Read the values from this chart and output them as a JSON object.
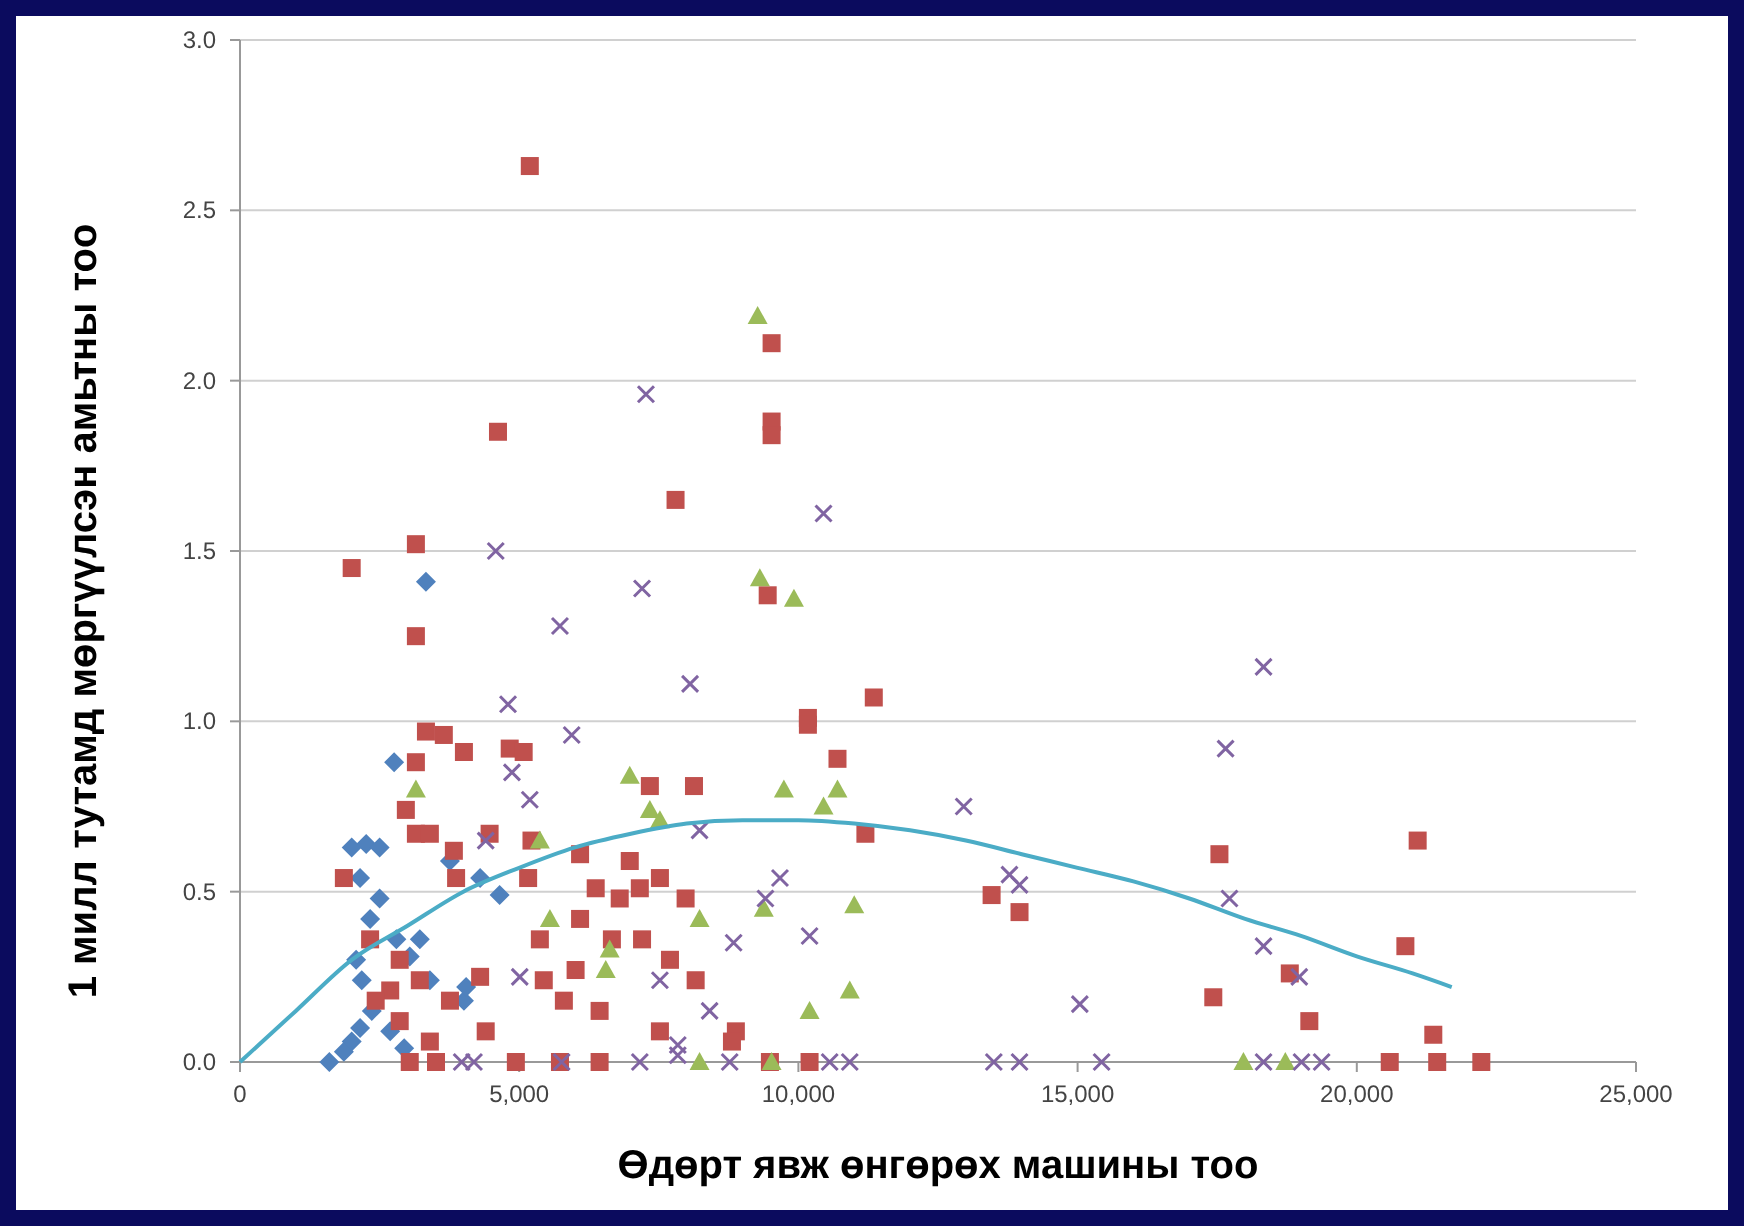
{
  "chart_data": {
    "type": "scatter",
    "xlabel": "Өдөрт явж өнгөрөх машины тоо",
    "ylabel": "1 милл тутамд мөргүүлсэн амьтны тоо",
    "xlim": [
      0,
      25000
    ],
    "ylim": [
      0,
      3
    ],
    "xticks": [
      {
        "value": 0,
        "label": "0"
      },
      {
        "value": 5000,
        "label": "5,000"
      },
      {
        "value": 10000,
        "label": "10,000"
      },
      {
        "value": 15000,
        "label": "15,000"
      },
      {
        "value": 20000,
        "label": "20,000"
      },
      {
        "value": 25000,
        "label": "25,000"
      }
    ],
    "yticks": [
      {
        "value": 0,
        "label": "0.0"
      },
      {
        "value": 0.5,
        "label": "0.5"
      },
      {
        "value": 1,
        "label": "1.0"
      },
      {
        "value": 1.5,
        "label": "1.5"
      },
      {
        "value": 2,
        "label": "2.0"
      },
      {
        "value": 2.5,
        "label": "2.5"
      },
      {
        "value": 3,
        "label": "3.0"
      }
    ],
    "grid": "y",
    "series": [
      {
        "marker": "diamond",
        "color": "#4f81bd",
        "x": [
          1600,
          1860,
          2000,
          2150,
          3330,
          2000,
          2260,
          2500,
          2150,
          2500,
          2330,
          2800,
          3040,
          3220,
          3400,
          4010,
          4050,
          2080,
          2180,
          2360,
          2690,
          2940,
          4300,
          4650,
          3760,
          2760
        ],
        "values": [
          0,
          0.03,
          0.06,
          0.1,
          1.41,
          0.63,
          0.64,
          0.63,
          0.54,
          0.48,
          0.42,
          0.36,
          0.31,
          0.36,
          0.24,
          0.18,
          0.22,
          0.3,
          0.24,
          0.15,
          0.09,
          0.04,
          0.54,
          0.49,
          0.59,
          0.88
        ]
      },
      {
        "marker": "square",
        "color": "#c0504d",
        "x": [
          2000,
          3150,
          3150,
          3330,
          3650,
          4010,
          4830,
          5080,
          3150,
          2970,
          3150,
          3400,
          3830,
          3870,
          4470,
          1860,
          5220,
          5190,
          4620,
          9520,
          9520,
          9520,
          7800,
          9450,
          11350,
          10170,
          10170,
          7340,
          8130,
          10700,
          11200,
          5160,
          6090,
          6370,
          6090,
          6660,
          6800,
          7200,
          7700,
          7980,
          8160,
          8880,
          8810,
          7520,
          6440,
          5730,
          4940,
          3510,
          3040,
          10200,
          9490,
          13460,
          13960,
          17540,
          17430,
          18800,
          19150,
          21090,
          20870,
          21370,
          20590,
          21440,
          22230,
          2860,
          2690,
          2430,
          3220,
          2860,
          2330,
          3400,
          3760,
          4300,
          4400,
          5370,
          5440,
          5800,
          6010,
          6440,
          6980,
          7160,
          7520
        ],
        "values": [
          1.45,
          1.52,
          1.25,
          0.97,
          0.96,
          0.91,
          0.92,
          0.91,
          0.88,
          0.74,
          0.67,
          0.67,
          0.62,
          0.54,
          0.67,
          0.54,
          0.65,
          2.63,
          1.85,
          2.11,
          1.88,
          1.84,
          1.65,
          1.37,
          1.07,
          1.01,
          0.99,
          0.81,
          0.81,
          0.89,
          0.67,
          0.54,
          0.61,
          0.51,
          0.42,
          0.36,
          0.48,
          0.36,
          0.3,
          0.48,
          0.24,
          0.09,
          0.06,
          0.09,
          0,
          0,
          0,
          0,
          0,
          0,
          0,
          0.49,
          0.44,
          0.61,
          0.19,
          0.26,
          0.12,
          0.65,
          0.34,
          0.08,
          0,
          0,
          0,
          0.3,
          0.21,
          0.18,
          0.24,
          0.12,
          0.36,
          0.06,
          0.18,
          0.25,
          0.09,
          0.36,
          0.24,
          0.18,
          0.27,
          0.15,
          0.59,
          0.51,
          0.54
        ]
      },
      {
        "marker": "triangle",
        "color": "#9bbb59",
        "x": [
          3150,
          5370,
          6980,
          7340,
          7520,
          9270,
          9310,
          9920,
          9740,
          10450,
          10700,
          9380,
          11000,
          10920,
          10200,
          8230,
          6620,
          6550,
          8230,
          9520,
          17970,
          18720,
          5550
        ],
        "values": [
          0.8,
          0.65,
          0.84,
          0.74,
          0.71,
          2.19,
          1.42,
          1.36,
          0.8,
          0.75,
          0.8,
          0.45,
          0.46,
          0.21,
          0.15,
          0.42,
          0.33,
          0.27,
          0,
          0,
          0,
          0,
          0.42
        ]
      },
      {
        "marker": "cross",
        "color": "#8064a2",
        "x": [
          4580,
          5730,
          7270,
          7200,
          8060,
          10450,
          4800,
          5940,
          4870,
          5190,
          4400,
          8230,
          9670,
          9410,
          8840,
          10200,
          7520,
          8410,
          5010,
          12960,
          13780,
          13960,
          15040,
          17650,
          18330,
          17720,
          18330,
          18970,
          3970,
          4190,
          5760,
          7160,
          7840,
          7840,
          8770,
          10560,
          10920,
          13500,
          13960,
          15430,
          18330,
          19010,
          19370
        ],
        "values": [
          1.5,
          1.28,
          1.96,
          1.39,
          1.11,
          1.61,
          1.05,
          0.96,
          0.85,
          0.77,
          0.65,
          0.68,
          0.54,
          0.48,
          0.35,
          0.37,
          0.24,
          0.15,
          0.25,
          0.75,
          0.55,
          0.52,
          0.17,
          0.92,
          1.16,
          0.48,
          0.34,
          0.25,
          0,
          0,
          0,
          0,
          0.02,
          0.05,
          0,
          0,
          0,
          0,
          0,
          0,
          0,
          0,
          0
        ]
      },
      {
        "type": "line",
        "marker": "none",
        "line_style": "solid",
        "color": "#4bacc6",
        "x": [
          0,
          1000,
          2000,
          3000,
          4000,
          5000,
          6000,
          7000,
          8000,
          9000,
          10000,
          11000,
          12000,
          13000,
          14000,
          15000,
          16000,
          17000,
          18000,
          19000,
          20000,
          21000,
          21700
        ],
        "values": [
          0,
          0.15,
          0.3,
          0.4,
          0.5,
          0.57,
          0.63,
          0.67,
          0.7,
          0.71,
          0.71,
          0.7,
          0.68,
          0.65,
          0.61,
          0.57,
          0.53,
          0.48,
          0.42,
          0.37,
          0.31,
          0.26,
          0.22
        ]
      }
    ]
  }
}
